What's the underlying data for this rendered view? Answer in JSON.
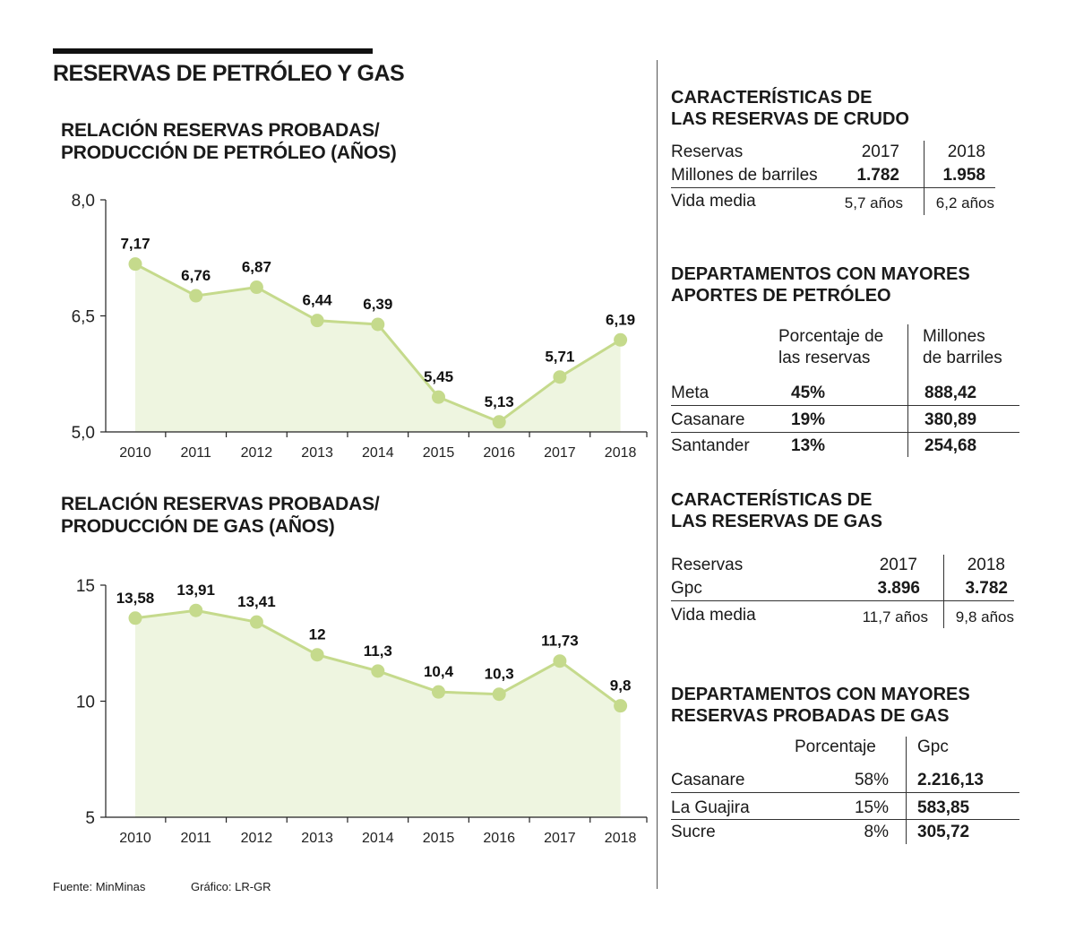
{
  "header": {
    "title": "RESERVAS DE PETRÓLEO Y GAS"
  },
  "chart_titles": {
    "oil": [
      "RELACIÓN RESERVAS PROBADAS/",
      "PRODUCCIÓN DE PETRÓLEO (AÑOS)"
    ],
    "gas": [
      "RELACIÓN RESERVAS PROBADAS/",
      "PRODUCCIÓN DE GAS (AÑOS)"
    ]
  },
  "colors": {
    "line": "#c5da8c",
    "fill": "#eef5e0",
    "point": "#c5da8c",
    "axis": "#222222"
  },
  "chart_data": [
    {
      "type": "area",
      "title": "RELACIÓN RESERVAS PROBADAS/ PRODUCCIÓN DE PETRÓLEO (AÑOS)",
      "categories": [
        "2010",
        "2011",
        "2012",
        "2013",
        "2014",
        "2015",
        "2016",
        "2017",
        "2018"
      ],
      "values": [
        7.17,
        6.76,
        6.87,
        6.44,
        6.39,
        5.45,
        5.13,
        5.71,
        6.19
      ],
      "value_labels": [
        "7,17",
        "6,76",
        "6,87",
        "6,44",
        "6,39",
        "5,45",
        "5,13",
        "5,71",
        "6,19"
      ],
      "ylim": [
        5.0,
        8.0
      ],
      "yticks": [
        5.0,
        6.5,
        8.0
      ],
      "ytick_labels": [
        "5,0",
        "6,5",
        "8,0"
      ],
      "xlabel": "",
      "ylabel": "",
      "grid": false
    },
    {
      "type": "area",
      "title": "RELACIÓN RESERVAS PROBADAS/ PRODUCCIÓN DE GAS (AÑOS)",
      "categories": [
        "2010",
        "2011",
        "2012",
        "2013",
        "2014",
        "2015",
        "2016",
        "2017",
        "2018"
      ],
      "values": [
        13.58,
        13.91,
        13.41,
        12,
        11.3,
        10.4,
        10.3,
        11.73,
        9.8
      ],
      "value_labels": [
        "13,58",
        "13,91",
        "13,41",
        "12",
        "11,3",
        "10,4",
        "10,3",
        "11,73",
        "9,8"
      ],
      "ylim": [
        5,
        15
      ],
      "yticks": [
        5,
        10,
        15
      ],
      "ytick_labels": [
        "5",
        "10",
        "15"
      ],
      "xlabel": "",
      "ylabel": "",
      "grid": false
    }
  ],
  "crude": {
    "title": [
      "CARACTERÍSTICAS DE",
      "LAS RESERVAS DE CRUDO"
    ],
    "h_label": "Reservas",
    "h_2017": "2017",
    "h_2018": "2018",
    "row1_label": "Millones de barriles",
    "row1_2017": "1.782",
    "row1_2018": "1.958",
    "row2_label": "Vida media",
    "row2_2017": "5,7 años",
    "row2_2018": "6,2 años"
  },
  "oil_depts": {
    "title": [
      "DEPARTAMENTOS CON MAYORES",
      "APORTES DE PETRÓLEO"
    ],
    "col1": [
      "Porcentaje de",
      "las reservas"
    ],
    "col2": [
      "Millones",
      "de barriles"
    ],
    "rows": [
      {
        "name": "Meta",
        "pct": "45%",
        "value": "888,42"
      },
      {
        "name": "Casanare",
        "pct": "19%",
        "value": "380,89"
      },
      {
        "name": "Santander",
        "pct": "13%",
        "value": "254,68"
      }
    ]
  },
  "gas_res": {
    "title": [
      "CARACTERÍSTICAS DE",
      "LAS RESERVAS DE GAS"
    ],
    "h_label": "Reservas",
    "h_2017": "2017",
    "h_2018": "2018",
    "row1_label": "Gpc",
    "row1_2017": "3.896",
    "row1_2018": "3.782",
    "row2_label": "Vida media",
    "row2_2017": "11,7 años",
    "row2_2018": "9,8 años"
  },
  "gas_depts": {
    "title": [
      "DEPARTAMENTOS CON MAYORES",
      "RESERVAS PROBADAS DE GAS"
    ],
    "col1": "Porcentaje",
    "col2": "Gpc",
    "rows": [
      {
        "name": "Casanare",
        "pct": "58%",
        "value": "2.216,13"
      },
      {
        "name": "La Guajira",
        "pct": "15%",
        "value": "583,85"
      },
      {
        "name": "Sucre",
        "pct": "8%",
        "value": "305,72"
      }
    ]
  },
  "footer": {
    "source": "Fuente: MinMinas",
    "credit": "Gráfico: LR-GR"
  }
}
